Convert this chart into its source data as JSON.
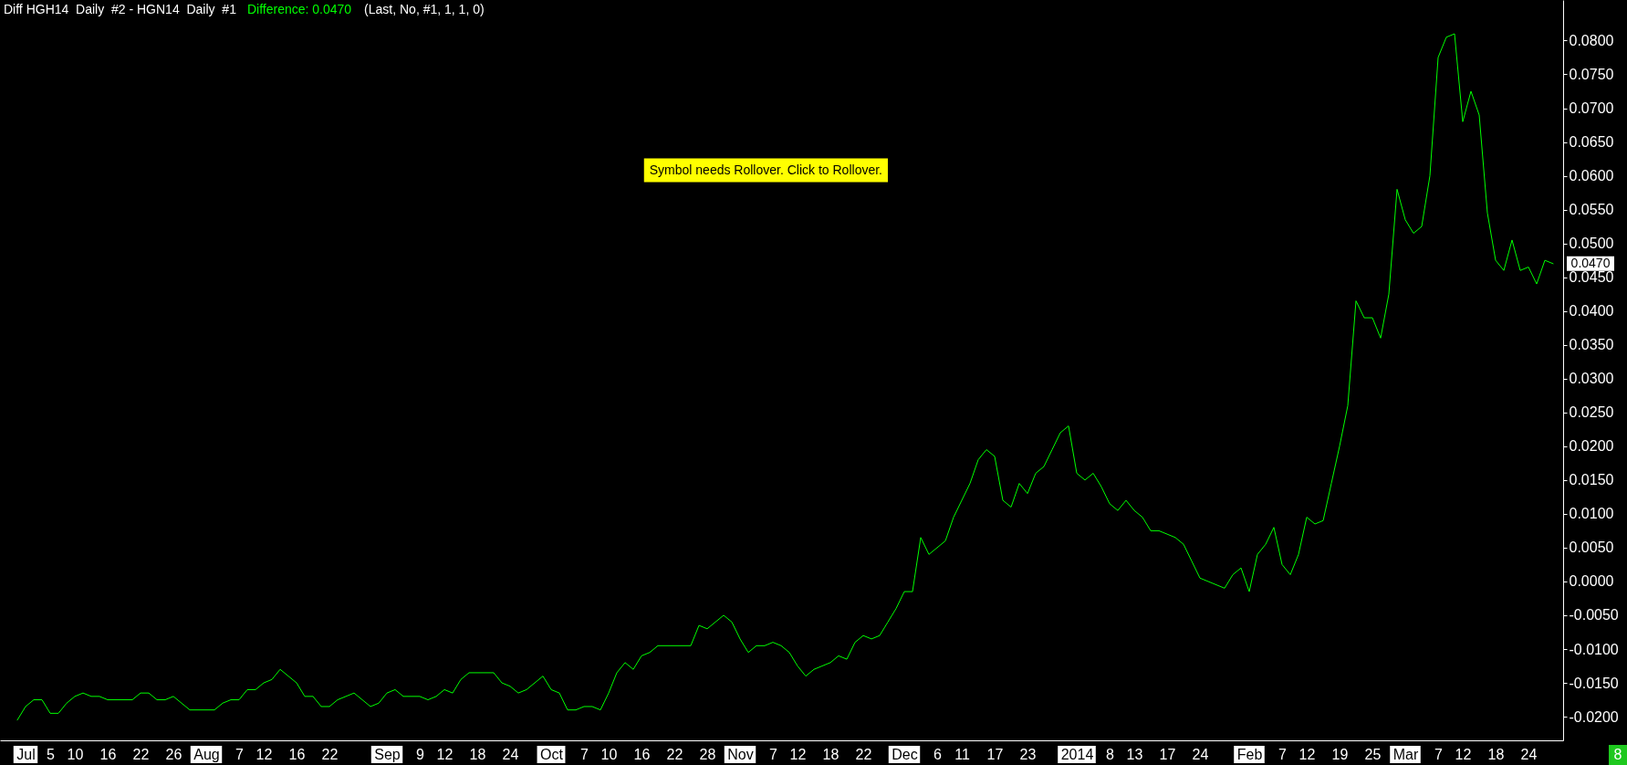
{
  "chart_data": {
    "type": "line",
    "title": "Diff HGH14  Daily  #2 - HGN14  Daily  #1",
    "annotations": [
      "Difference: 0.0470",
      "(Last, No, #1, 1, 1, 0)",
      "Symbol needs Rollover. Click to Rollover.",
      "0.0470",
      "8"
    ],
    "categories": [
      null,
      "Jul",
      null,
      null,
      "5",
      null,
      null,
      "10",
      null,
      null,
      null,
      "16",
      null,
      null,
      null,
      "22",
      null,
      null,
      null,
      "26",
      null,
      null,
      null,
      "Aug",
      null,
      null,
      null,
      "7",
      null,
      null,
      "12",
      null,
      null,
      null,
      "16",
      null,
      null,
      null,
      "22",
      null,
      null,
      null,
      null,
      null,
      null,
      "Sep",
      null,
      null,
      null,
      "9",
      null,
      null,
      "12",
      null,
      null,
      null,
      "18",
      null,
      null,
      null,
      "24",
      null,
      null,
      null,
      null,
      "Oct",
      null,
      null,
      null,
      "7",
      null,
      null,
      "10",
      null,
      null,
      null,
      "16",
      null,
      null,
      null,
      "22",
      null,
      null,
      null,
      "28",
      null,
      null,
      null,
      "Nov",
      null,
      null,
      null,
      "7",
      null,
      null,
      "12",
      null,
      null,
      null,
      "18",
      null,
      null,
      null,
      "22",
      null,
      null,
      null,
      null,
      "Dec",
      null,
      null,
      null,
      "6",
      null,
      null,
      "11",
      null,
      null,
      null,
      "17",
      null,
      null,
      null,
      "23",
      null,
      null,
      null,
      null,
      null,
      "2014",
      null,
      null,
      null,
      "8",
      null,
      null,
      "13",
      null,
      null,
      null,
      "17",
      null,
      null,
      null,
      "24",
      null,
      null,
      null,
      null,
      null,
      "Feb",
      null,
      null,
      null,
      "7",
      null,
      null,
      "12",
      null,
      null,
      null,
      "19",
      null,
      null,
      null,
      "25",
      null,
      null,
      null,
      "Mar",
      null,
      null,
      null,
      "7",
      null,
      null,
      "12",
      null,
      null,
      null,
      "18",
      null,
      null,
      null,
      "24",
      null,
      null,
      null
    ],
    "series": [
      {
        "color": "#00ff00",
        "values": [
          -0.0205,
          -0.0185,
          -0.0175,
          -0.0175,
          -0.0195,
          -0.0195,
          -0.018,
          -0.017,
          -0.0165,
          -0.017,
          -0.017,
          -0.0175,
          -0.0175,
          -0.0175,
          -0.0175,
          -0.0165,
          -0.0165,
          -0.0175,
          -0.0175,
          -0.017,
          -0.018,
          -0.019,
          -0.019,
          -0.019,
          -0.019,
          -0.018,
          -0.0175,
          -0.0175,
          -0.016,
          -0.016,
          -0.015,
          -0.0145,
          -0.013,
          -0.014,
          -0.015,
          -0.017,
          -0.017,
          -0.0185,
          -0.0185,
          -0.0175,
          -0.017,
          -0.0165,
          -0.0175,
          -0.0185,
          -0.018,
          -0.0165,
          -0.016,
          -0.017,
          -0.017,
          -0.017,
          -0.0175,
          -0.017,
          -0.016,
          -0.0165,
          -0.0145,
          -0.0135,
          -0.0135,
          -0.0135,
          -0.0135,
          -0.015,
          -0.0155,
          -0.0165,
          -0.016,
          -0.015,
          -0.014,
          -0.016,
          -0.0165,
          -0.019,
          -0.019,
          -0.0185,
          -0.0185,
          -0.019,
          -0.0165,
          -0.0135,
          -0.012,
          -0.013,
          -0.011,
          -0.0105,
          -0.0095,
          -0.0095,
          -0.0095,
          -0.0095,
          -0.0095,
          -0.0065,
          -0.007,
          -0.006,
          -0.005,
          -0.006,
          -0.0085,
          -0.0105,
          -0.0095,
          -0.0095,
          -0.009,
          -0.0095,
          -0.0105,
          -0.0125,
          -0.014,
          -0.013,
          -0.0125,
          -0.012,
          -0.011,
          -0.0115,
          -0.009,
          -0.008,
          -0.0085,
          -0.008,
          -0.006,
          -0.004,
          -0.0015,
          -0.0015,
          0.0065,
          0.004,
          0.005,
          0.006,
          0.0095,
          0.012,
          0.0145,
          0.018,
          0.0195,
          0.0185,
          0.012,
          0.011,
          0.0145,
          0.013,
          0.016,
          0.017,
          0.0195,
          0.022,
          0.023,
          0.016,
          0.015,
          0.016,
          0.014,
          0.0115,
          0.0105,
          0.012,
          0.0105,
          0.0095,
          0.0075,
          0.0075,
          0.007,
          0.0065,
          0.0055,
          0.003,
          0.0005,
          0,
          -0.0005,
          -0.001,
          0.001,
          0.002,
          -0.0015,
          0.004,
          0.0055,
          0.008,
          0.0025,
          0.001,
          0.004,
          0.0095,
          0.0085,
          0.009,
          0.0145,
          0.02,
          0.026,
          0.0415,
          0.039,
          0.039,
          0.036,
          0.0425,
          0.058,
          0.0535,
          0.0515,
          0.0525,
          0.06,
          0.0775,
          0.0805,
          0.081,
          0.068,
          0.0725,
          0.069,
          0.0545,
          0.0475,
          0.046,
          0.0505,
          0.046,
          0.0465,
          0.044,
          0.0475,
          0.047
        ]
      }
    ],
    "ylim": [
      -0.0235,
      0.086
    ],
    "yticks": [
      {
        "value": -0.02,
        "label": "-0.0200"
      },
      {
        "value": -0.015,
        "label": "-0.0150"
      },
      {
        "value": -0.01,
        "label": "-0.0100"
      },
      {
        "value": -0.005,
        "label": "-0.0050"
      },
      {
        "value": 0,
        "label": "0.0000"
      },
      {
        "value": 0.005,
        "label": "0.0050"
      },
      {
        "value": 0.01,
        "label": "0.0100"
      },
      {
        "value": 0.015,
        "label": "0.0150"
      },
      {
        "value": 0.02,
        "label": "0.0200"
      },
      {
        "value": 0.025,
        "label": "0.0250"
      },
      {
        "value": 0.03,
        "label": "0.0300"
      },
      {
        "value": 0.035,
        "label": "0.0350"
      },
      {
        "value": 0.04,
        "label": "0.0400"
      },
      {
        "value": 0.045,
        "label": "0.0450"
      },
      {
        "value": 0.05,
        "label": "0.0500"
      },
      {
        "value": 0.055,
        "label": "0.0550"
      },
      {
        "value": 0.06,
        "label": "0.0600"
      },
      {
        "value": 0.065,
        "label": "0.0650"
      },
      {
        "value": 0.07,
        "label": "0.0700"
      },
      {
        "value": 0.075,
        "label": "0.0750"
      },
      {
        "value": 0.08,
        "label": "0.0800"
      }
    ]
  }
}
